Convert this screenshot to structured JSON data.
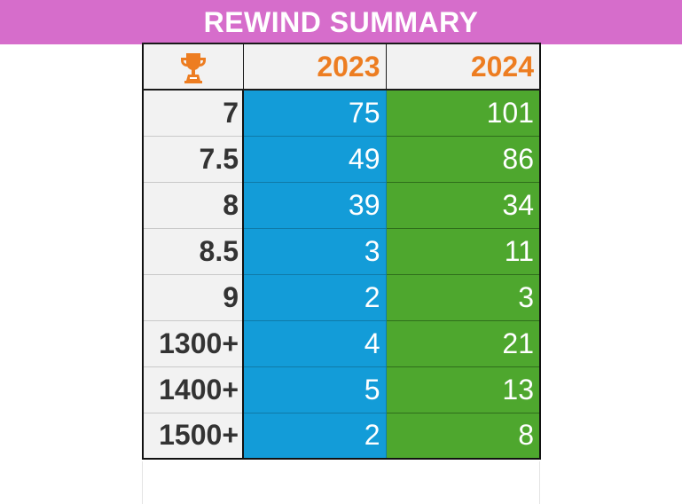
{
  "title": "REWIND SUMMARY",
  "header": {
    "icon": "trophy-icon",
    "years": [
      "2023",
      "2024"
    ]
  },
  "rows": [
    {
      "label": "7",
      "v2023": "75",
      "v2024": "101"
    },
    {
      "label": "7.5",
      "v2023": "49",
      "v2024": "86"
    },
    {
      "label": "8",
      "v2023": "39",
      "v2024": "34"
    },
    {
      "label": "8.5",
      "v2023": "3",
      "v2024": "11"
    },
    {
      "label": "9",
      "v2023": "2",
      "v2024": "3"
    },
    {
      "label": "1300+",
      "v2023": "4",
      "v2024": "21"
    },
    {
      "label": "1400+",
      "v2023": "5",
      "v2024": "13"
    },
    {
      "label": "1500+",
      "v2023": "2",
      "v2024": "8"
    }
  ],
  "colors": {
    "title_bg": "#d66dcb",
    "year_text": "#ed7d21",
    "col_2023": "#139cd8",
    "col_2024": "#4ea72e",
    "label_bg": "#f2f2f2"
  }
}
